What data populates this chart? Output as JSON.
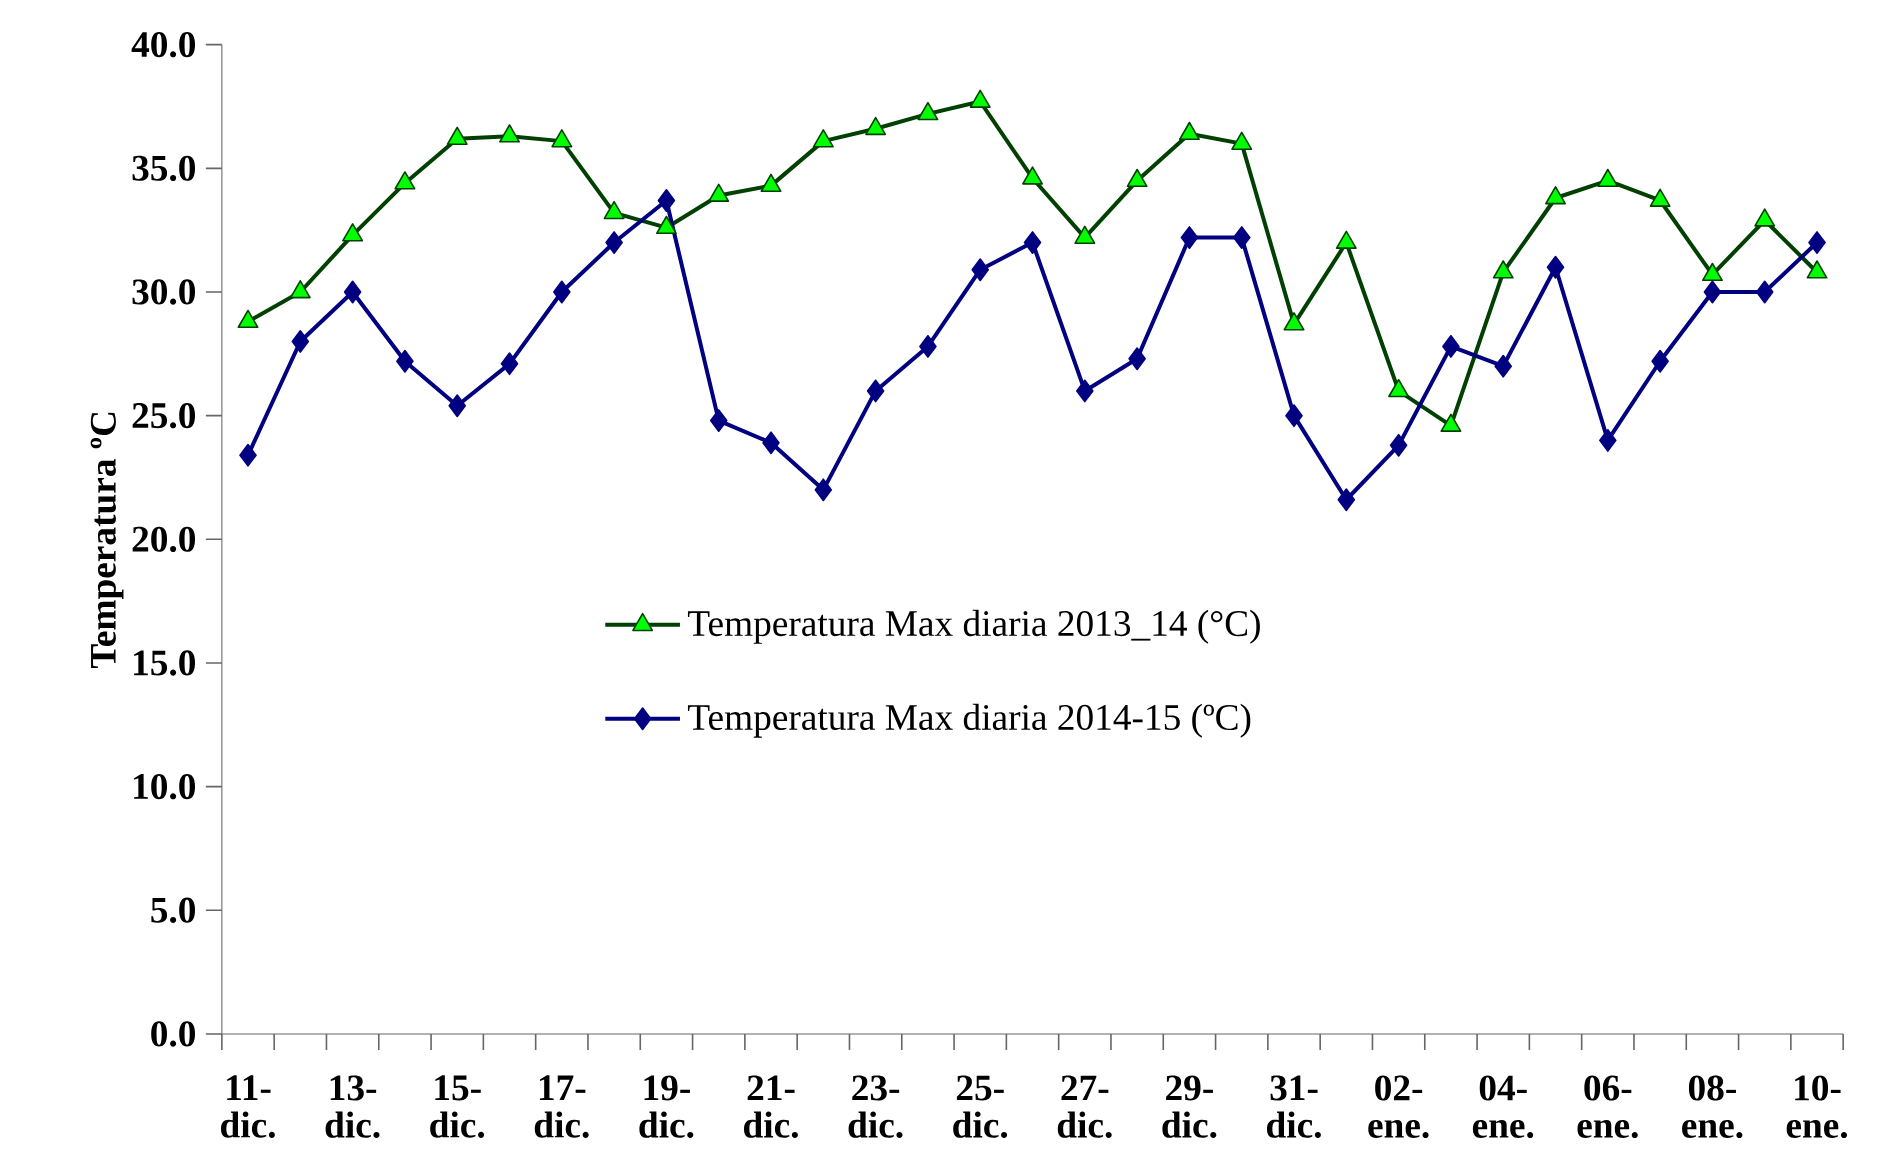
{
  "chart_data": {
    "type": "line",
    "ylabel": "Temperatura ºC",
    "categories": [
      "11- dic.",
      null,
      "13- dic.",
      null,
      "15- dic.",
      null,
      "17- dic.",
      null,
      "19- dic.",
      null,
      "21- dic.",
      null,
      "23- dic.",
      null,
      "25- dic.",
      null,
      "27- dic.",
      null,
      "29- dic.",
      null,
      "31- dic.",
      null,
      "02- ene.",
      null,
      "04- ene.",
      null,
      "06- ene.",
      null,
      "08- ene.",
      null,
      "10- ene."
    ],
    "series": [
      {
        "name": "Temperatura Max diaria 2013_14 (°C)",
        "color": "#00ff00",
        "marker": "triangle",
        "values": [
          28.8,
          30.0,
          32.3,
          34.4,
          36.2,
          36.3,
          36.1,
          33.2,
          32.6,
          33.9,
          34.3,
          36.1,
          36.6,
          37.2,
          37.7,
          34.6,
          32.2,
          34.5,
          36.4,
          36.0,
          28.7,
          32.0,
          26.0,
          24.6,
          30.8,
          33.8,
          34.5,
          33.7,
          30.7,
          32.9,
          30.8
        ]
      },
      {
        "name": "Temperatura Max diaria 2014-15 (ºC)",
        "color": "#000080",
        "marker": "diamond",
        "values": [
          23.4,
          28.0,
          30.0,
          27.2,
          25.4,
          27.1,
          30.0,
          32.0,
          33.7,
          24.8,
          23.9,
          22.0,
          26.0,
          27.8,
          30.9,
          32.0,
          26.0,
          27.3,
          32.2,
          32.2,
          25.0,
          21.6,
          23.8,
          27.8,
          27.0,
          31.0,
          24.0,
          27.2,
          30.0,
          30.0,
          32.0
        ]
      }
    ],
    "ylim": [
      0,
      40
    ],
    "yticks": [
      {
        "value": 0,
        "label": "0.0"
      },
      {
        "value": 5,
        "label": "5.0"
      },
      {
        "value": 10,
        "label": "10.0"
      },
      {
        "value": 15,
        "label": "15.0"
      },
      {
        "value": 20,
        "label": "20.0"
      },
      {
        "value": 25,
        "label": "25.0"
      },
      {
        "value": 30,
        "label": "30.0"
      },
      {
        "value": 35,
        "label": "35.0"
      },
      {
        "value": 40,
        "label": "40.0"
      }
    ],
    "grid": false,
    "legend": "center",
    "line_style": "solid"
  }
}
